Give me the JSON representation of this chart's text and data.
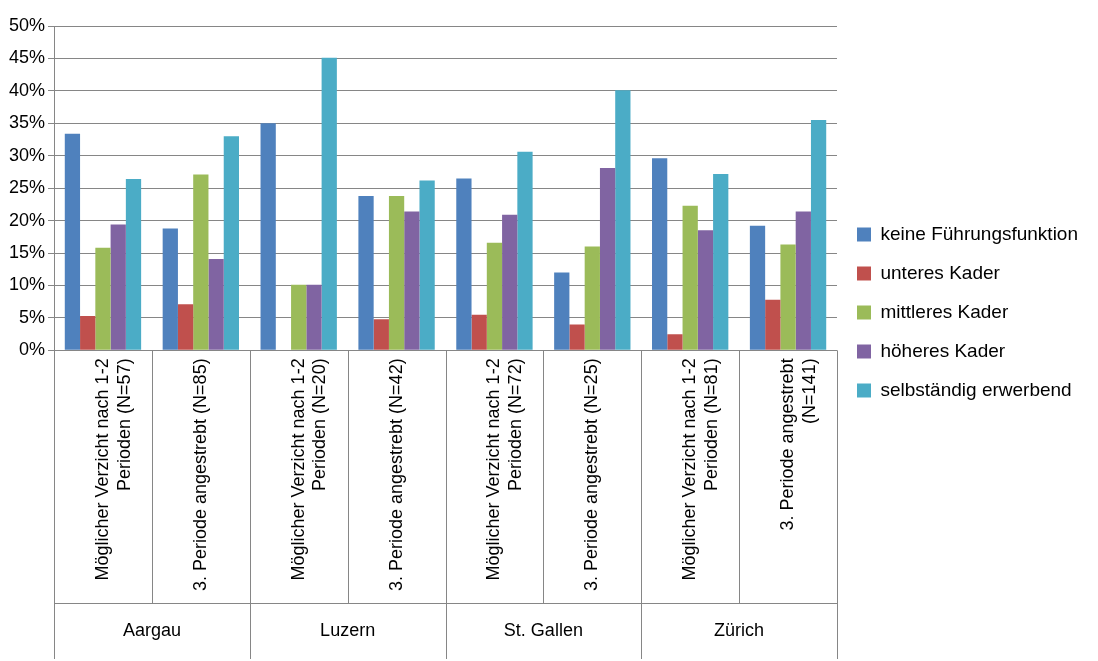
{
  "chart_data": {
    "type": "bar",
    "categories": [
      "Möglicher Verzicht nach 1-2 Perioden (N=57)",
      "3. Periode angestrebt (N=85)",
      "Möglicher Verzicht nach 1-2 Perioden (N=20)",
      "3. Periode angestrebt (N=42)",
      "Möglicher Verzicht nach 1-2 Perioden (N=72)",
      "3. Periode angestrebt (N=25)",
      "Möglicher Verzicht nach 1-2 Perioden (N=81)",
      "3. Periode angestrebt (N=141)"
    ],
    "annotations": [
      "Aargau",
      "Luzern",
      "St. Gallen",
      "Zürich"
    ],
    "series": [
      {
        "name": "keine Führungsfunktion",
        "color": "#4f81bd",
        "values": [
          33.4,
          18.8,
          35.0,
          23.8,
          26.5,
          12.0,
          29.6,
          19.2
        ]
      },
      {
        "name": "unteres Kader",
        "color": "#c0504d",
        "values": [
          5.3,
          7.1,
          null,
          4.8,
          5.5,
          4.0,
          2.5,
          7.8
        ]
      },
      {
        "name": "mittleres Kader",
        "color": "#9bbb59",
        "values": [
          15.8,
          27.1,
          10.1,
          23.8,
          16.6,
          16.0,
          22.3,
          16.3
        ]
      },
      {
        "name": "höheres Kader",
        "color": "#8064a2",
        "values": [
          19.4,
          14.1,
          10.1,
          21.4,
          20.9,
          28.1,
          18.5,
          21.4
        ]
      },
      {
        "name": "selbständig erwerbend",
        "color": "#4bacc6",
        "values": [
          26.4,
          33.0,
          45.1,
          26.2,
          30.6,
          40.1,
          27.2,
          35.5
        ]
      }
    ],
    "ylim": [
      0,
      50
    ],
    "yticks": [
      {
        "value": 0,
        "label": "0%"
      },
      {
        "value": 5,
        "label": "5%"
      },
      {
        "value": 10,
        "label": "10%"
      },
      {
        "value": 15,
        "label": "15%"
      },
      {
        "value": 20,
        "label": "20%"
      },
      {
        "value": 25,
        "label": "25%"
      },
      {
        "value": 30,
        "label": "30%"
      },
      {
        "value": 35,
        "label": "35%"
      },
      {
        "value": 40,
        "label": "40%"
      },
      {
        "value": 45,
        "label": "45%"
      },
      {
        "value": 50,
        "label": "50%"
      }
    ],
    "grid": "y",
    "legend": "right"
  }
}
